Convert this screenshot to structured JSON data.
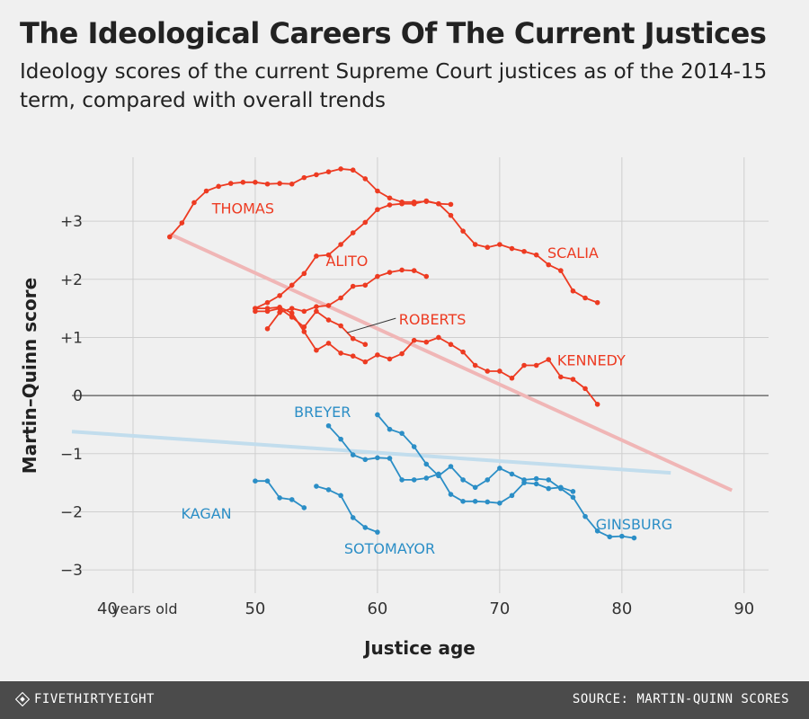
{
  "title": "The Ideological Careers Of The Current Justices",
  "subtitle": "Ideology scores of the current Supreme Court justices as of the 2014-15 term, compared with overall trends",
  "footer": {
    "brand": "FIVETHIRTYEIGHT",
    "source": "SOURCE: MARTIN-QUINN SCORES"
  },
  "colors": {
    "red": "#ed3b22",
    "blue": "#2b8ec6",
    "trend_red": "#f0b6b6",
    "trend_blue": "#c2dded",
    "grid": "#cfcfcf",
    "zero": "#555555"
  },
  "chart_data": {
    "type": "line",
    "xlabel": "Justice age",
    "ylabel": "Martin–Quinn score",
    "xlim": [
      35,
      92
    ],
    "ylim": [
      -3.4,
      4.1
    ],
    "x_ticks": [
      40,
      50,
      60,
      70,
      80,
      90
    ],
    "x_tick_labels": [
      "40",
      "50",
      "60",
      "70",
      "80",
      "90"
    ],
    "x_unit_label": "years old",
    "y_ticks": [
      3,
      2,
      1,
      0,
      -1,
      -2,
      -3
    ],
    "y_tick_labels": [
      "+3",
      "+2",
      "+1",
      "0",
      "−1",
      "−2",
      "−3"
    ],
    "series": [
      {
        "name": "THOMAS",
        "group": "conservative",
        "x": [
          43,
          44,
          45,
          46,
          47,
          48,
          49,
          50,
          51,
          52,
          53,
          54,
          55,
          56,
          57,
          58,
          59,
          60,
          61,
          62,
          63,
          64,
          65,
          66
        ],
        "y": [
          2.73,
          2.97,
          3.32,
          3.52,
          3.6,
          3.65,
          3.67,
          3.67,
          3.64,
          3.65,
          3.64,
          3.75,
          3.8,
          3.85,
          3.9,
          3.88,
          3.73,
          3.52,
          3.4,
          3.33,
          3.33,
          3.34,
          3.3,
          3.29
        ]
      },
      {
        "name": "SCALIA",
        "group": "conservative",
        "x": [
          50,
          51,
          52,
          53,
          54,
          55,
          56,
          57,
          58,
          59,
          60,
          61,
          62,
          63,
          64,
          65,
          66,
          67,
          68,
          69,
          70,
          71,
          72,
          73,
          74,
          75,
          76,
          77,
          78
        ],
        "y": [
          1.5,
          1.6,
          1.72,
          1.9,
          2.1,
          2.4,
          2.42,
          2.6,
          2.8,
          2.98,
          3.2,
          3.28,
          3.3,
          3.3,
          3.35,
          3.3,
          3.1,
          2.83,
          2.6,
          2.55,
          2.6,
          2.53,
          2.48,
          2.42,
          2.25,
          2.15,
          1.8,
          1.68,
          1.6
        ]
      },
      {
        "name": "ALITO",
        "group": "conservative",
        "x": [
          51,
          52,
          53,
          54,
          55,
          56,
          57,
          58,
          59,
          60,
          61,
          62,
          63,
          64
        ],
        "y": [
          1.15,
          1.43,
          1.5,
          1.45,
          1.53,
          1.55,
          1.68,
          1.88,
          1.9,
          2.05,
          2.12,
          2.16,
          2.15,
          2.05
        ]
      },
      {
        "name": "ROBERTS",
        "group": "conservative",
        "x": [
          50,
          51,
          52,
          53,
          54,
          55,
          56,
          57,
          58,
          59
        ],
        "y": [
          1.45,
          1.45,
          1.5,
          1.35,
          1.18,
          1.45,
          1.3,
          1.2,
          0.98,
          0.88
        ]
      },
      {
        "name": "KENNEDY",
        "group": "conservative",
        "x": [
          50,
          51,
          52,
          53,
          54,
          55,
          56,
          57,
          58,
          59,
          60,
          61,
          62,
          63,
          64,
          65,
          66,
          67,
          68,
          69,
          70,
          71,
          72,
          73,
          74,
          75,
          76,
          77,
          78
        ],
        "y": [
          1.5,
          1.5,
          1.52,
          1.42,
          1.1,
          0.78,
          0.9,
          0.73,
          0.68,
          0.58,
          0.7,
          0.63,
          0.72,
          0.95,
          0.92,
          1.0,
          0.88,
          0.75,
          0.52,
          0.42,
          0.42,
          0.3,
          0.52,
          0.52,
          0.62,
          0.32,
          0.28,
          0.12,
          -0.15
        ]
      },
      {
        "name": "BREYER",
        "group": "liberal",
        "x": [
          56,
          57,
          58,
          59,
          60,
          61,
          62,
          63,
          64,
          65,
          66,
          67,
          68,
          69,
          70,
          71,
          72,
          73,
          74,
          75,
          76
        ],
        "y": [
          -0.52,
          -0.75,
          -1.02,
          -1.1,
          -1.07,
          -1.08,
          -1.45,
          -1.45,
          -1.42,
          -1.35,
          -1.7,
          -1.82,
          -1.82,
          -1.83,
          -1.85,
          -1.72,
          -1.5,
          -1.52,
          -1.6,
          -1.58,
          -1.65
        ]
      },
      {
        "name": "GINSBURG",
        "group": "liberal",
        "x": [
          60,
          61,
          62,
          63,
          64,
          65,
          66,
          67,
          68,
          69,
          70,
          71,
          72,
          73,
          74,
          75,
          76,
          77,
          78,
          79,
          80,
          81
        ],
        "y": [
          -0.33,
          -0.58,
          -0.65,
          -0.88,
          -1.18,
          -1.38,
          -1.22,
          -1.45,
          -1.58,
          -1.45,
          -1.25,
          -1.35,
          -1.45,
          -1.43,
          -1.45,
          -1.6,
          -1.75,
          -2.08,
          -2.33,
          -2.43,
          -2.42,
          -2.45
        ]
      },
      {
        "name": "KAGAN",
        "group": "liberal",
        "x": [
          50,
          51,
          52,
          53,
          54
        ],
        "y": [
          -1.47,
          -1.47,
          -1.76,
          -1.79,
          -1.93
        ]
      },
      {
        "name": "SOTOMAYOR",
        "group": "liberal",
        "x": [
          55,
          56,
          57,
          58,
          59,
          60
        ],
        "y": [
          -1.56,
          -1.62,
          -1.72,
          -2.1,
          -2.27,
          -2.35
        ]
      }
    ],
    "trends": [
      {
        "name": "conservative-trend",
        "x": [
          43,
          89
        ],
        "y": [
          2.78,
          -1.63
        ]
      },
      {
        "name": "liberal-trend",
        "x": [
          35,
          84
        ],
        "y": [
          -0.62,
          -1.33
        ]
      }
    ],
    "labels": [
      {
        "text": "THOMAS",
        "x": 49,
        "y": 3.13
      },
      {
        "text": "SCALIA",
        "x": 76,
        "y": 2.37
      },
      {
        "text": "ALITO",
        "x": 57.5,
        "y": 2.23
      },
      {
        "text": "ROBERTS",
        "x": 64.5,
        "y": 1.22
      },
      {
        "text": "KENNEDY",
        "x": 77.5,
        "y": 0.52
      },
      {
        "text": "BREYER",
        "x": 55.5,
        "y": -0.37
      },
      {
        "text": "GINSBURG",
        "x": 81,
        "y": -2.3
      },
      {
        "text": "KAGAN",
        "x": 46,
        "y": -2.12
      },
      {
        "text": "SOTOMAYOR",
        "x": 61,
        "y": -2.72
      }
    ],
    "annotations": [
      {
        "name": "roberts-leader",
        "from": [
          61.5,
          1.33
        ],
        "to": [
          57.5,
          1.08
        ]
      }
    ]
  }
}
